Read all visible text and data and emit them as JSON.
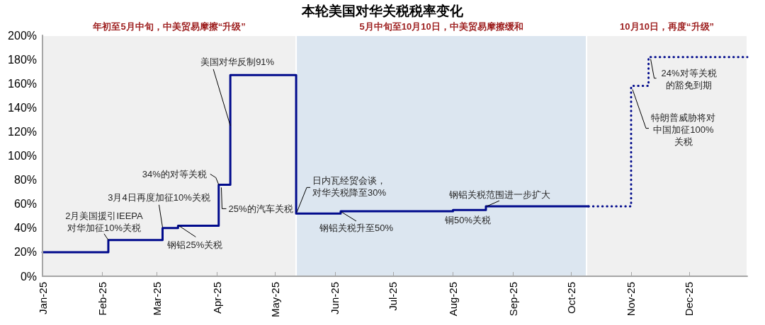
{
  "chart_data": {
    "type": "step",
    "title": "本轮美国对华关税税率变化",
    "xlim": [
      "2025-01-01",
      "2025-12-31"
    ],
    "xticks": [
      {
        "value": "2025-01-01",
        "label": "Jan-25"
      },
      {
        "value": "2025-02-01",
        "label": "Feb-25"
      },
      {
        "value": "2025-03-01",
        "label": "Mar-25"
      },
      {
        "value": "2025-04-01",
        "label": "Apr-25"
      },
      {
        "value": "2025-05-01",
        "label": "May-25"
      },
      {
        "value": "2025-06-01",
        "label": "Jun-25"
      },
      {
        "value": "2025-07-01",
        "label": "Jul-25"
      },
      {
        "value": "2025-08-01",
        "label": "Aug-25"
      },
      {
        "value": "2025-09-01",
        "label": "Sep-25"
      },
      {
        "value": "2025-10-01",
        "label": "Oct-25"
      },
      {
        "value": "2025-11-01",
        "label": "Nov-25"
      },
      {
        "value": "2025-12-01",
        "label": "Dec-25"
      }
    ],
    "ylim": [
      0,
      200
    ],
    "yticks": [
      {
        "value": 0,
        "label": "0%"
      },
      {
        "value": 20,
        "label": "20%"
      },
      {
        "value": 40,
        "label": "40%"
      },
      {
        "value": 60,
        "label": "60%"
      },
      {
        "value": 80,
        "label": "80%"
      },
      {
        "value": 100,
        "label": "100%"
      },
      {
        "value": 120,
        "label": "120%"
      },
      {
        "value": 140,
        "label": "140%"
      },
      {
        "value": 160,
        "label": "160%"
      },
      {
        "value": 180,
        "label": "180%"
      },
      {
        "value": 200,
        "label": "200%"
      }
    ],
    "series": [
      {
        "color": "#000a8c",
        "line_style": "solid",
        "x": [
          "2025-01-01",
          "2025-02-04",
          "2025-03-04",
          "2025-03-12",
          "2025-04-02",
          "2025-04-08",
          "2025-05-12",
          "2025-06-04",
          "2025-08-01",
          "2025-08-18",
          "2025-10-10"
        ],
        "values": [
          20,
          30,
          40,
          42,
          76,
          167,
          52,
          54,
          55,
          58,
          58
        ]
      },
      {
        "color": "#000a8c",
        "line_style": "dotted",
        "x": [
          "2025-10-10",
          "2025-11-01",
          "2025-11-10",
          "2025-12-31"
        ],
        "values": [
          58,
          158,
          182,
          182
        ]
      }
    ],
    "bands": [
      {
        "axis": "x",
        "from": "2025-01-01",
        "to": "2025-05-12",
        "label": "年初至5月中旬，中美贸易摩擦“升级”",
        "color": "#f0f0f0"
      },
      {
        "axis": "x",
        "from": "2025-05-12",
        "to": "2025-10-09",
        "label": "5月中旬至10月10日，中美贸易摩擦缓和",
        "color": "#dce6f0"
      },
      {
        "axis": "x",
        "from": "2025-10-09",
        "to": "2025-12-31",
        "label": "10月10日，再度“升级”",
        "color": "#f0f0f0"
      }
    ],
    "annotations": [
      {
        "text": "2月美国援引IEEPA对华加征10%关税",
        "x": "2025-02-04",
        "y": 30
      },
      {
        "text": "3月4日再度加征10%关税",
        "x": "2025-03-04",
        "y": 40
      },
      {
        "text": "钢铝25%关税",
        "x": "2025-03-12",
        "y": 42
      },
      {
        "text": "34%的对等关税",
        "x": "2025-04-02",
        "y": 76
      },
      {
        "text": "25%的汽车关税",
        "x": "2025-04-03",
        "y": 76
      },
      {
        "text": "美国对华反制91%",
        "x": "2025-04-08",
        "y": 125
      },
      {
        "text": "日内瓦经贸会谈，对华关税降至30%",
        "x": "2025-05-12",
        "y": 52
      },
      {
        "text": "钢铝关税升至50%",
        "x": "2025-06-04",
        "y": 54
      },
      {
        "text": "铜50%关税",
        "x": "2025-08-01",
        "y": 55
      },
      {
        "text": "钢铝关税范围进一步扩大",
        "x": "2025-08-18",
        "y": 58
      },
      {
        "text": "特朗普威胁将对中国加征100%关税",
        "x": "2025-11-01",
        "y": 158
      },
      {
        "text": "24%对等关税的豁免到期",
        "x": "2025-11-10",
        "y": 182
      }
    ],
    "marker": "none"
  }
}
